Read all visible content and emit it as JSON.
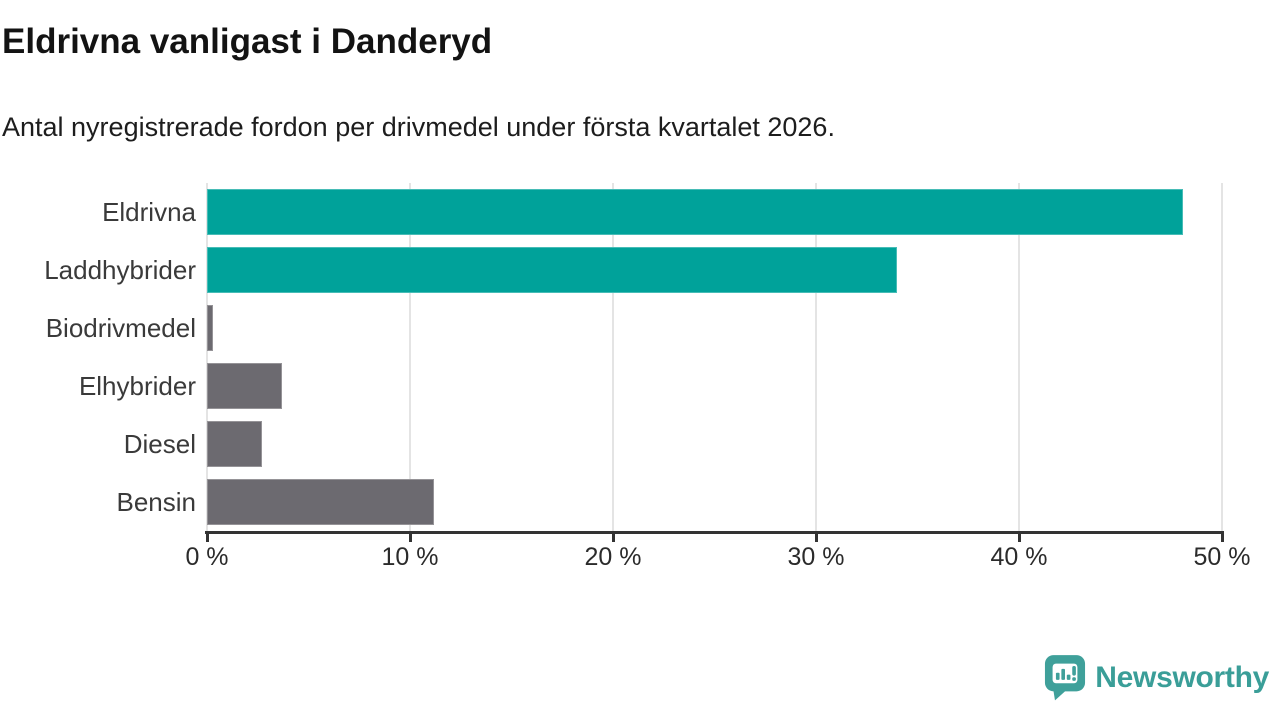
{
  "chart": {
    "title": "Eldrivna vanligast i Danderyd",
    "subtitle": "Antal nyregistrerade fordon per drivmedel under första kvartalet 2026."
  },
  "chart_data": {
    "type": "bar",
    "orientation": "horizontal",
    "title": "Eldrivna vanligast i Danderyd",
    "subtitle": "Antal nyregistrerade fordon per drivmedel under första kvartalet 2026.",
    "categories": [
      "Eldrivna",
      "Laddhybrider",
      "Biodrivmedel",
      "Elhybrider",
      "Diesel",
      "Bensin"
    ],
    "values": [
      48.1,
      34.0,
      0.3,
      3.7,
      2.7,
      11.2
    ],
    "unit": "%",
    "xlim": [
      0,
      50
    ],
    "x_ticks": [
      0,
      10,
      20,
      30,
      40,
      50
    ],
    "x_tick_labels": [
      "0 %",
      "10 %",
      "20 %",
      "30 %",
      "40 %",
      "50 %"
    ],
    "grid": "vertical-only",
    "legend": "none",
    "bar_colors": [
      "#00A29A",
      "#00A29A",
      "#6C6A70",
      "#6C6A70",
      "#6C6A70",
      "#6C6A70"
    ],
    "highlight_color": "#00A29A",
    "base_color": "#6C6A70"
  },
  "footer": {
    "brand": "Newsworthy",
    "brand_color": "#3A9E98"
  }
}
